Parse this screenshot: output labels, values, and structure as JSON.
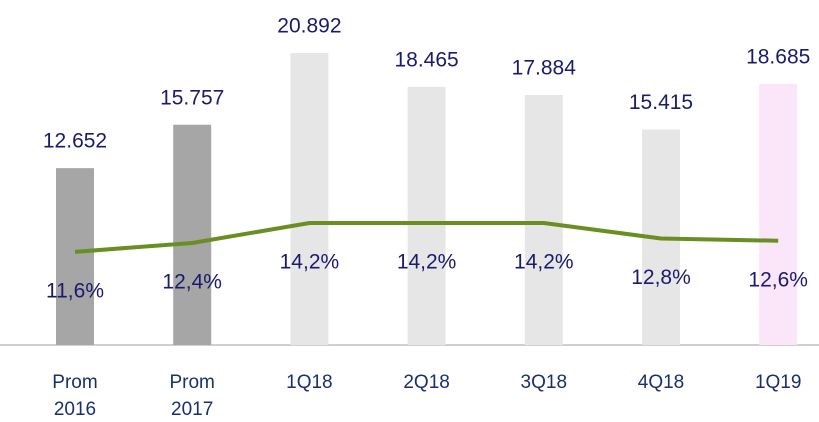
{
  "chart_data": {
    "type": "bar-line",
    "categories": [
      "Prom 2016",
      "Prom 2017",
      "1Q18",
      "2Q18",
      "3Q18",
      "4Q18",
      "1Q19"
    ],
    "series": [
      {
        "type": "bar",
        "colors": [
          "#a6a6a6",
          "#a6a6a6",
          "#e7e6e6",
          "#e7e6e6",
          "#e7e6e6",
          "#e7e6e6",
          "#fbe5f8"
        ],
        "values": [
          12652,
          15757,
          20892,
          18465,
          17884,
          15415,
          18685
        ],
        "value_labels": [
          "12.652",
          "15.757",
          "20.892",
          "18.465",
          "17.884",
          "15.415",
          "18.685"
        ]
      },
      {
        "type": "line",
        "axis": "y2",
        "color": "#6b8e23",
        "values": [
          11.6,
          12.4,
          14.2,
          14.2,
          14.2,
          12.8,
          12.6
        ],
        "value_labels": [
          "11,6%",
          "12,4%",
          "14,2%",
          "14,2%",
          "14,2%",
          "12,8%",
          "12,6%"
        ]
      }
    ],
    "ylim": [
      0,
      23250
    ],
    "y2lim": [
      3.2,
      32.5
    ]
  }
}
